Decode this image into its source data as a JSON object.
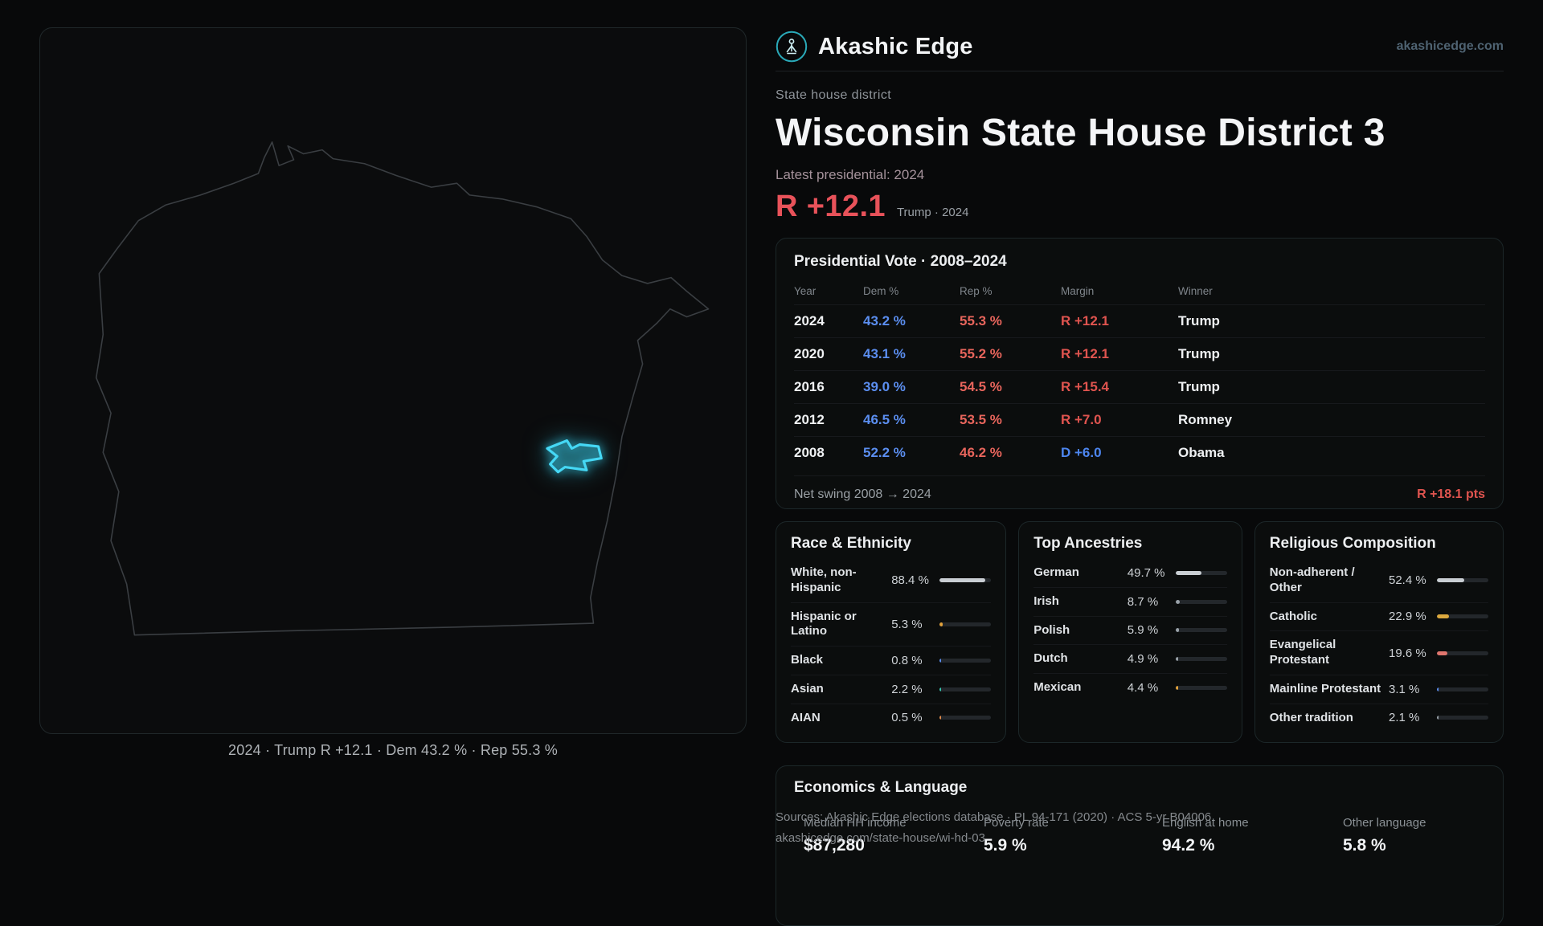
{
  "theme": {
    "accent_red": "#e8525a",
    "dem_blue": "#5b8ef0",
    "rep_red": "#e8655c",
    "brand_teal": "#2aa9b8",
    "district_cyan": "#45d8f5"
  },
  "header": {
    "brand": "Akashic Edge",
    "site": "akashicedge.com"
  },
  "district": {
    "kicker": "State house district",
    "title": "Wisconsin State House District 3",
    "latest_label": "Latest presidential: 2024",
    "margin_big": "R +12.1",
    "margin_context": "Trump · 2024"
  },
  "map": {
    "caption": "2024 · Trump R +12.1 · Dem 43.2 % · Rep 55.3 %"
  },
  "presidential": {
    "title": "Presidential Vote · 2008–2024",
    "columns": [
      "Year",
      "Dem %",
      "Rep %",
      "Margin",
      "Winner"
    ],
    "rows": [
      {
        "year": "2024",
        "dem": "43.2 %",
        "rep": "55.3 %",
        "margin": "R +12.1",
        "winner": "Trump"
      },
      {
        "year": "2020",
        "dem": "43.1 %",
        "rep": "55.2 %",
        "margin": "R +12.1",
        "winner": "Trump"
      },
      {
        "year": "2016",
        "dem": "39.0 %",
        "rep": "54.5 %",
        "margin": "R +15.4",
        "winner": "Trump"
      },
      {
        "year": "2012",
        "dem": "46.5 %",
        "rep": "53.5 %",
        "margin": "R +7.0",
        "winner": "Romney"
      },
      {
        "year": "2008",
        "dem": "52.2 %",
        "rep": "46.2 %",
        "margin": "D +6.0",
        "winner": "Obama"
      }
    ],
    "net_swing_label": "Net swing 2008 → 2024",
    "net_swing_value": "R +18.1 pts"
  },
  "race": {
    "title": "Race & Ethnicity",
    "rows": [
      {
        "label": "White, non-Hispanic",
        "value": "88.4 %",
        "pct": 88.4,
        "color": "#c9ced3"
      },
      {
        "label": "Hispanic or Latino",
        "value": "5.3 %",
        "pct": 5.3,
        "color": "#e2a23c"
      },
      {
        "label": "Black",
        "value": "0.8 %",
        "pct": 0.8,
        "color": "#5b8ef0"
      },
      {
        "label": "Asian",
        "value": "2.2 %",
        "pct": 2.2,
        "color": "#38c7b0"
      },
      {
        "label": "AIAN",
        "value": "0.5 %",
        "pct": 0.5,
        "color": "#e08a4a"
      }
    ]
  },
  "ancestries": {
    "title": "Top Ancestries",
    "rows": [
      {
        "label": "German",
        "value": "49.7 %",
        "pct": 49.7,
        "color": "#c9ced3"
      },
      {
        "label": "Irish",
        "value": "8.7 %",
        "pct": 8.7,
        "color": "#9aa2a9"
      },
      {
        "label": "Polish",
        "value": "5.9 %",
        "pct": 5.9,
        "color": "#9aa2a9"
      },
      {
        "label": "Dutch",
        "value": "4.9 %",
        "pct": 4.9,
        "color": "#9aa2a9"
      },
      {
        "label": "Mexican",
        "value": "4.4 %",
        "pct": 4.4,
        "color": "#e2a23c"
      }
    ]
  },
  "religion": {
    "title": "Religious Composition",
    "rows": [
      {
        "label": "Non-adherent / Other",
        "value": "52.4 %",
        "pct": 52.4,
        "color": "#c9ced3"
      },
      {
        "label": "Catholic",
        "value": "22.9 %",
        "pct": 22.9,
        "color": "#dba83e"
      },
      {
        "label": "Evangelical Protestant",
        "value": "19.6 %",
        "pct": 19.6,
        "color": "#e0766e"
      },
      {
        "label": "Mainline Protestant",
        "value": "3.1 %",
        "pct": 3.1,
        "color": "#5b8ef0"
      },
      {
        "label": "Other tradition",
        "value": "2.1 %",
        "pct": 2.1,
        "color": "#9aa2a9"
      }
    ]
  },
  "economics": {
    "title": "Economics & Language",
    "stats": [
      {
        "label": "Median HH income",
        "value": "$87,280"
      },
      {
        "label": "Poverty rate",
        "value": "5.9 %"
      },
      {
        "label": "English at home",
        "value": "94.2 %"
      },
      {
        "label": "Other language",
        "value": "5.8 %"
      }
    ]
  },
  "footer": {
    "sources": "Sources: Akashic Edge elections database · PL 94-171 (2020) · ACS 5-yr B04006",
    "permalink": "akashicedge.com/state-house/wi-hd-03"
  }
}
